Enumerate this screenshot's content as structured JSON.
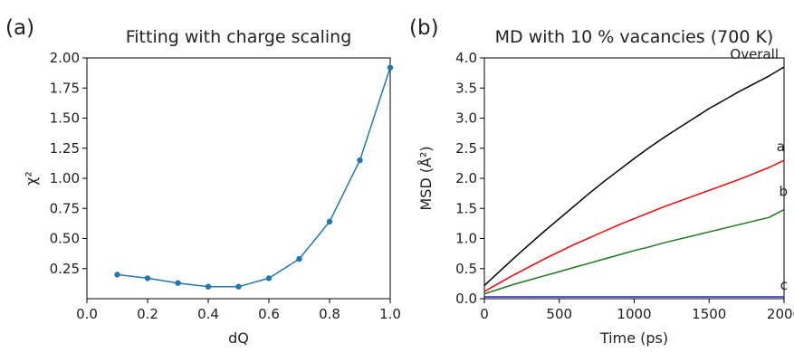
{
  "chart_data": [
    {
      "panel": "(a)",
      "type": "line",
      "title": "Fitting with charge scaling",
      "xlabel": "dQ",
      "ylabel": "χ²",
      "xlim": [
        0.0,
        1.0
      ],
      "ylim": [
        0.0,
        2.0
      ],
      "xticks": [
        0.0,
        0.2,
        0.4,
        0.6,
        0.8,
        1.0
      ],
      "xtick_labels": [
        "0.0",
        "0.2",
        "0.4",
        "0.6",
        "0.8",
        "1.0"
      ],
      "yticks": [
        0.25,
        0.5,
        0.75,
        1.0,
        1.25,
        1.5,
        1.75,
        2.0
      ],
      "ytick_labels": [
        "0.25",
        "0.50",
        "0.75",
        "1.00",
        "1.25",
        "1.50",
        "1.75",
        "2.00"
      ],
      "grid": false,
      "markers": true,
      "series": [
        {
          "color": "#1f77b4",
          "x": [
            0.1,
            0.2,
            0.3,
            0.4,
            0.5,
            0.6,
            0.7,
            0.8,
            0.9,
            1.0
          ],
          "y": [
            0.2,
            0.17,
            0.13,
            0.1,
            0.1,
            0.17,
            0.33,
            0.64,
            1.15,
            1.92
          ]
        }
      ]
    },
    {
      "panel": "(b)",
      "type": "line",
      "title": "MD with 10 % vacancies (700 K)",
      "xlabel": "Time (ps)",
      "ylabel": "MSD (Å²)",
      "xlim": [
        0,
        2000
      ],
      "ylim": [
        0.0,
        4.0
      ],
      "xticks": [
        0,
        500,
        1000,
        1500,
        2000
      ],
      "xtick_labels": [
        "0",
        "500",
        "1000",
        "1500",
        "2000"
      ],
      "yticks": [
        0.0,
        0.5,
        1.0,
        1.5,
        2.0,
        2.5,
        3.0,
        3.5,
        4.0
      ],
      "ytick_labels": [
        "0.0",
        "0.5",
        "1.0",
        "1.5",
        "2.0",
        "2.5",
        "3.0",
        "3.5",
        "4.0"
      ],
      "grid": false,
      "markers": false,
      "series": [
        {
          "name": "Overall",
          "color": "#000000",
          "x": [
            0,
            100,
            200,
            300,
            400,
            500,
            600,
            700,
            800,
            900,
            1000,
            1100,
            1200,
            1300,
            1400,
            1500,
            1600,
            1700,
            1800,
            1900,
            2000
          ],
          "y": [
            0.22,
            0.45,
            0.68,
            0.9,
            1.12,
            1.33,
            1.54,
            1.75,
            1.95,
            2.14,
            2.33,
            2.51,
            2.68,
            2.84,
            3.0,
            3.16,
            3.3,
            3.44,
            3.57,
            3.7,
            3.85
          ]
        },
        {
          "name": "a",
          "color": "#ff0000",
          "x": [
            0,
            100,
            200,
            300,
            400,
            500,
            600,
            700,
            800,
            900,
            1000,
            1100,
            1200,
            1300,
            1400,
            1500,
            1600,
            1700,
            1800,
            1900,
            2000
          ],
          "y": [
            0.12,
            0.26,
            0.4,
            0.53,
            0.66,
            0.78,
            0.9,
            1.01,
            1.12,
            1.23,
            1.33,
            1.43,
            1.53,
            1.62,
            1.71,
            1.8,
            1.89,
            1.98,
            2.08,
            2.18,
            2.3
          ]
        },
        {
          "name": "b",
          "color": "#1a7a1a",
          "x": [
            0,
            100,
            200,
            300,
            400,
            500,
            600,
            700,
            800,
            900,
            1000,
            1100,
            1200,
            1300,
            1400,
            1500,
            1600,
            1700,
            1800,
            1900,
            2000
          ],
          "y": [
            0.08,
            0.16,
            0.24,
            0.31,
            0.38,
            0.45,
            0.52,
            0.59,
            0.66,
            0.73,
            0.8,
            0.86,
            0.93,
            0.99,
            1.05,
            1.11,
            1.17,
            1.23,
            1.29,
            1.35,
            1.48
          ]
        },
        {
          "name": "c",
          "color": "#1f1fcc",
          "x": [
            0,
            2000
          ],
          "y": [
            0.03,
            0.03
          ]
        }
      ]
    }
  ]
}
